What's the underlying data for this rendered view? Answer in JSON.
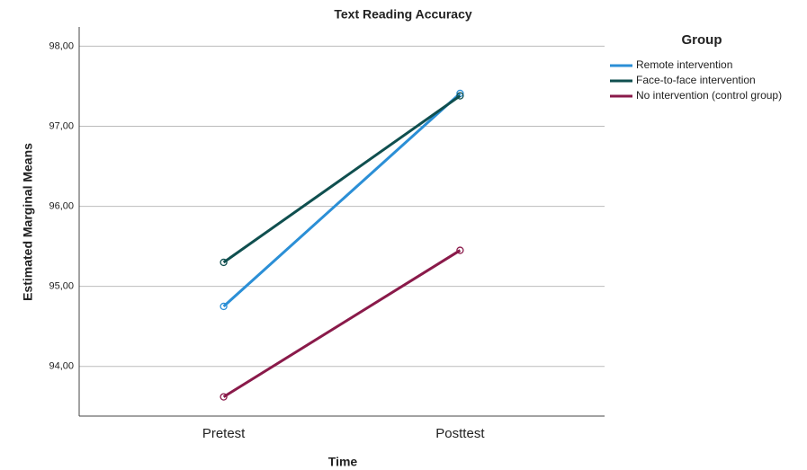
{
  "chart_data": {
    "type": "line",
    "title": "Text Reading Accuracy",
    "x_label": "Time",
    "y_label": "Estimated Marginal Means",
    "categories": [
      "Pretest",
      "Posttest"
    ],
    "legend_title": "Group",
    "legend_position": "right",
    "series": [
      {
        "name": "Remote intervention",
        "color": "#2b8fd6",
        "values": [
          94.75,
          97.41
        ]
      },
      {
        "name": "Face-to-face intervention",
        "color": "#0f4f4f",
        "values": [
          95.3,
          97.38
        ]
      },
      {
        "name": "No intervention (control group)",
        "color": "#8a1a4a",
        "values": [
          93.62,
          95.45
        ]
      }
    ],
    "ylim": [
      93.38,
      98.24
    ],
    "yticks": [
      {
        "value": 94,
        "label": "94,00"
      },
      {
        "value": 95,
        "label": "95,00"
      },
      {
        "value": 96,
        "label": "96,00"
      },
      {
        "value": 97,
        "label": "97,00"
      },
      {
        "value": 98,
        "label": "98,00"
      }
    ],
    "grid": true
  }
}
